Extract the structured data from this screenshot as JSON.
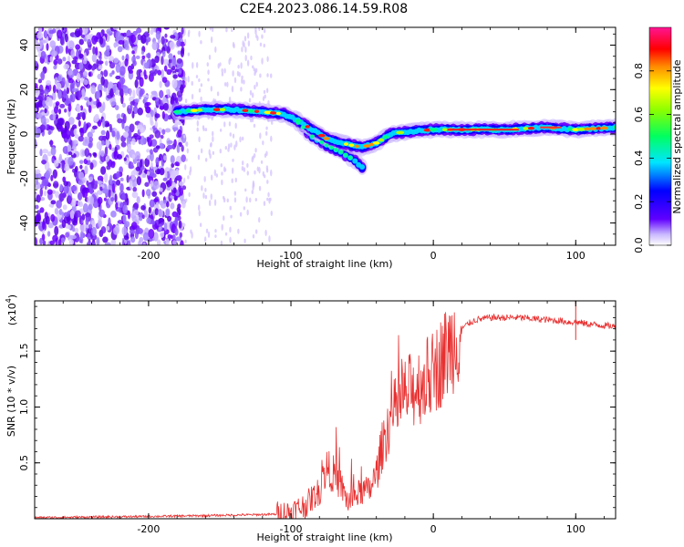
{
  "title": "C2E4.2023.086.14.59.R08",
  "chart_data": [
    {
      "type": "heatmap",
      "name": "spectrogram",
      "xlabel": "Height of straight line (km)",
      "ylabel": "Frequency (Hz)",
      "xlim": [
        -280,
        128
      ],
      "ylim": [
        -50,
        48
      ],
      "xticks": [
        -200,
        -100,
        0,
        100
      ],
      "yticks": [
        -40,
        -20,
        0,
        20,
        40
      ],
      "ridge": [
        {
          "x": -180,
          "y": 10
        },
        {
          "x": -160,
          "y": 11
        },
        {
          "x": -140,
          "y": 11
        },
        {
          "x": -120,
          "y": 10
        },
        {
          "x": -105,
          "y": 9
        },
        {
          "x": -95,
          "y": 6
        },
        {
          "x": -85,
          "y": 2
        },
        {
          "x": -75,
          "y": -2
        },
        {
          "x": -65,
          "y": -4
        },
        {
          "x": -50,
          "y": -6
        },
        {
          "x": -40,
          "y": -4
        },
        {
          "x": -30,
          "y": 0
        },
        {
          "x": -20,
          "y": 1
        },
        {
          "x": 0,
          "y": 2
        },
        {
          "x": 20,
          "y": 2
        },
        {
          "x": 50,
          "y": 2
        },
        {
          "x": 80,
          "y": 3
        },
        {
          "x": 100,
          "y": 2
        },
        {
          "x": 128,
          "y": 3
        }
      ],
      "branch": [
        {
          "x": -95,
          "y": 5
        },
        {
          "x": -85,
          "y": -1
        },
        {
          "x": -75,
          "y": -5
        },
        {
          "x": -65,
          "y": -8
        },
        {
          "x": -55,
          "y": -12
        },
        {
          "x": -50,
          "y": -15
        }
      ]
    },
    {
      "type": "line",
      "name": "snr",
      "xlabel": "Height of straight line (km)",
      "ylabel": "SNR (10 * v/v)",
      "scale_label": "(x10",
      "scale_exp": "4",
      "xlim": [
        -280,
        128
      ],
      "ylim": [
        0,
        1.95
      ],
      "xticks": [
        -200,
        -100,
        0,
        100
      ],
      "yticks": [
        0.5,
        1.0,
        1.5
      ],
      "ytick_labels": [
        "0.5",
        "1.0",
        "1.5"
      ],
      "series": [
        {
          "color": "#e83030",
          "x": [
            -280,
            -200,
            -150,
            -110,
            -100,
            -90,
            -80,
            -75,
            -70,
            -65,
            -60,
            -55,
            -50,
            -45,
            -40,
            -35,
            -30,
            -25,
            -20,
            -15,
            -10,
            -5,
            0,
            5,
            10,
            15,
            20,
            25,
            30,
            40,
            50,
            60,
            70,
            80,
            90,
            95,
            100,
            105,
            110,
            120,
            128
          ],
          "y": [
            0.01,
            0.02,
            0.03,
            0.04,
            0.06,
            0.12,
            0.25,
            0.45,
            0.4,
            0.3,
            0.15,
            0.2,
            0.25,
            0.25,
            0.4,
            0.7,
            0.9,
            1.0,
            1.1,
            1.15,
            1.2,
            1.25,
            1.3,
            1.4,
            1.5,
            1.6,
            1.7,
            1.75,
            1.78,
            1.8,
            1.8,
            1.8,
            1.79,
            1.78,
            1.77,
            1.76,
            1.76,
            1.75,
            1.74,
            1.73,
            1.72
          ]
        }
      ]
    }
  ],
  "colorbar": {
    "label": "Normalized spectral amplitude",
    "range": [
      0,
      1
    ],
    "ticks": [
      0.0,
      0.2,
      0.4,
      0.6,
      0.8
    ],
    "tick_labels": [
      "0.0",
      "0.2",
      "0.4",
      "0.6",
      "0.8"
    ]
  }
}
